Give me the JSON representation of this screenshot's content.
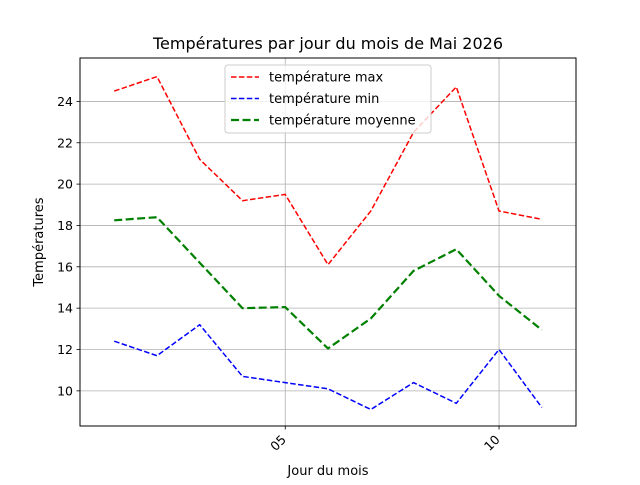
{
  "chart_data": {
    "type": "line",
    "title": "Températures par jour du mois de Mai 2026",
    "xlabel": "Jour du mois",
    "ylabel": "Températures",
    "x": [
      1,
      2,
      3,
      4,
      5,
      6,
      7,
      8,
      9,
      10,
      11
    ],
    "xlim": [
      0.2,
      11.8
    ],
    "ylim": [
      8.3,
      26.1
    ],
    "x_ticks": [
      {
        "value": 5,
        "label": "05"
      },
      {
        "value": 10,
        "label": "10"
      }
    ],
    "y_ticks": [
      10,
      12,
      14,
      16,
      18,
      20,
      22,
      24
    ],
    "grid": true,
    "legend_position": "top-center",
    "series": [
      {
        "name": "température max",
        "color": "#ff0000",
        "style": "dashed",
        "values": [
          24.5,
          25.2,
          21.2,
          19.2,
          19.5,
          16.1,
          18.7,
          22.5,
          24.7,
          18.7,
          18.3
        ]
      },
      {
        "name": "température min",
        "color": "#0000ff",
        "style": "dashed",
        "values": [
          12.4,
          11.7,
          13.2,
          10.7,
          10.4,
          10.1,
          9.1,
          10.4,
          9.4,
          12.0,
          9.2
        ]
      },
      {
        "name": "température moyenne",
        "color": "#008000",
        "style": "dashed-bold",
        "values": [
          18.25,
          18.4,
          16.2,
          14.0,
          14.05,
          12.05,
          13.5,
          15.8,
          16.85,
          14.6,
          12.95
        ]
      }
    ]
  }
}
